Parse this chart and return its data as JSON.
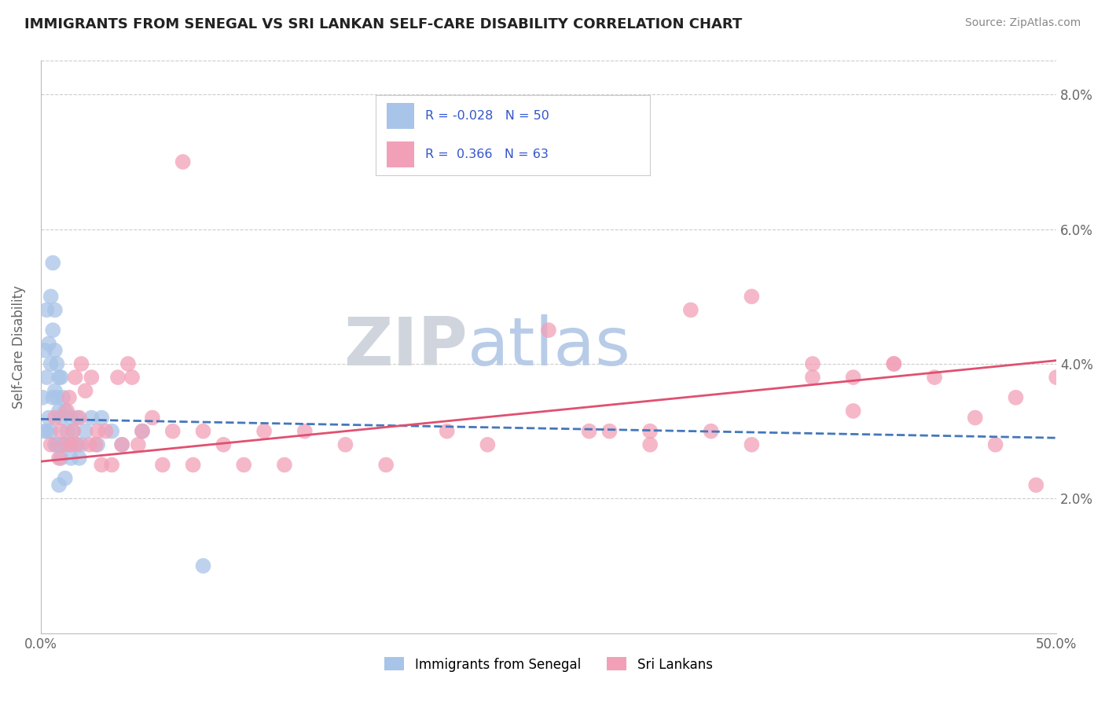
{
  "title": "IMMIGRANTS FROM SENEGAL VS SRI LANKAN SELF-CARE DISABILITY CORRELATION CHART",
  "source": "Source: ZipAtlas.com",
  "ylabel": "Self-Care Disability",
  "xmin": 0.0,
  "xmax": 0.5,
  "ymin": 0.0,
  "ymax": 0.085,
  "yticks": [
    0.02,
    0.04,
    0.06,
    0.08
  ],
  "ytick_labels": [
    "2.0%",
    "4.0%",
    "6.0%",
    "8.0%"
  ],
  "senegal_color": "#a8c4e8",
  "srilanka_color": "#f2a0b8",
  "senegal_line_color": "#4477bb",
  "srilanka_line_color": "#e05070",
  "legend_label1": "Immigrants from Senegal",
  "legend_label2": "Sri Lankans",
  "watermark_ZIP": "ZIP",
  "watermark_atlas": "atlas",
  "senegal_x": [
    0.001,
    0.002,
    0.002,
    0.003,
    0.003,
    0.003,
    0.004,
    0.004,
    0.005,
    0.005,
    0.005,
    0.006,
    0.006,
    0.006,
    0.007,
    0.007,
    0.007,
    0.007,
    0.008,
    0.008,
    0.008,
    0.009,
    0.009,
    0.009,
    0.009,
    0.01,
    0.01,
    0.01,
    0.011,
    0.011,
    0.012,
    0.012,
    0.012,
    0.013,
    0.014,
    0.015,
    0.015,
    0.016,
    0.017,
    0.018,
    0.019,
    0.02,
    0.022,
    0.025,
    0.028,
    0.03,
    0.035,
    0.04,
    0.05,
    0.08
  ],
  "senegal_y": [
    0.035,
    0.042,
    0.03,
    0.048,
    0.038,
    0.03,
    0.043,
    0.032,
    0.05,
    0.04,
    0.03,
    0.055,
    0.045,
    0.035,
    0.048,
    0.042,
    0.036,
    0.028,
    0.04,
    0.035,
    0.028,
    0.038,
    0.033,
    0.028,
    0.022,
    0.038,
    0.032,
    0.026,
    0.035,
    0.028,
    0.033,
    0.028,
    0.023,
    0.03,
    0.028,
    0.032,
    0.026,
    0.03,
    0.028,
    0.032,
    0.026,
    0.028,
    0.03,
    0.032,
    0.028,
    0.032,
    0.03,
    0.028,
    0.03,
    0.01
  ],
  "srilanka_x": [
    0.005,
    0.007,
    0.009,
    0.01,
    0.012,
    0.013,
    0.014,
    0.015,
    0.016,
    0.017,
    0.018,
    0.019,
    0.02,
    0.022,
    0.024,
    0.025,
    0.027,
    0.028,
    0.03,
    0.032,
    0.035,
    0.038,
    0.04,
    0.043,
    0.045,
    0.048,
    0.05,
    0.055,
    0.06,
    0.065,
    0.07,
    0.075,
    0.08,
    0.09,
    0.1,
    0.11,
    0.12,
    0.13,
    0.15,
    0.17,
    0.2,
    0.22,
    0.25,
    0.27,
    0.3,
    0.32,
    0.35,
    0.38,
    0.4,
    0.42,
    0.44,
    0.46,
    0.47,
    0.48,
    0.49,
    0.5,
    0.35,
    0.4,
    0.42,
    0.28,
    0.3,
    0.33,
    0.38
  ],
  "srilanka_y": [
    0.028,
    0.032,
    0.026,
    0.03,
    0.028,
    0.033,
    0.035,
    0.028,
    0.03,
    0.038,
    0.028,
    0.032,
    0.04,
    0.036,
    0.028,
    0.038,
    0.028,
    0.03,
    0.025,
    0.03,
    0.025,
    0.038,
    0.028,
    0.04,
    0.038,
    0.028,
    0.03,
    0.032,
    0.025,
    0.03,
    0.07,
    0.025,
    0.03,
    0.028,
    0.025,
    0.03,
    0.025,
    0.03,
    0.028,
    0.025,
    0.03,
    0.028,
    0.045,
    0.03,
    0.03,
    0.048,
    0.028,
    0.038,
    0.033,
    0.04,
    0.038,
    0.032,
    0.028,
    0.035,
    0.022,
    0.038,
    0.05,
    0.038,
    0.04,
    0.03,
    0.028,
    0.03,
    0.04
  ],
  "senegal_line_x0": 0.0,
  "senegal_line_x1": 0.5,
  "senegal_line_y0": 0.0318,
  "senegal_line_y1": 0.029,
  "srilanka_line_x0": 0.0,
  "srilanka_line_x1": 0.5,
  "srilanka_line_y0": 0.0255,
  "srilanka_line_y1": 0.0405
}
